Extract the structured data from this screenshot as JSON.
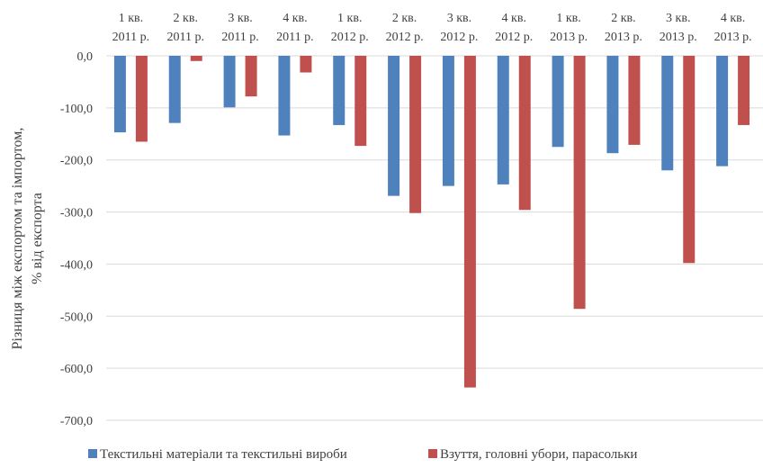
{
  "chart_data": {
    "type": "bar",
    "categories": [
      [
        "1 кв.",
        "2011 р."
      ],
      [
        "2 кв.",
        "2011 р."
      ],
      [
        "3 кв.",
        "2011 р."
      ],
      [
        "4 кв.",
        "2011 р."
      ],
      [
        "1 кв.",
        "2012 р."
      ],
      [
        "2 кв.",
        "2012 р."
      ],
      [
        "3 кв.",
        "2012 р."
      ],
      [
        "4 кв.",
        "2012 р."
      ],
      [
        "1 кв.",
        "2013 р."
      ],
      [
        "2 кв.",
        "2013 р."
      ],
      [
        "3 кв.",
        "2013 р."
      ],
      [
        "4 кв.",
        "2013 р."
      ]
    ],
    "series": [
      {
        "name": "Текстильні матеріали та текстильні вироби",
        "color": "#4F81BD",
        "values": [
          -147,
          -129,
          -99,
          -153,
          -133,
          -269,
          -250,
          -247,
          -175,
          -187,
          -220,
          -212
        ]
      },
      {
        "name": "Взуття, головні убори, парасольки",
        "color": "#C0504D",
        "values": [
          -165,
          -10,
          -78,
          -32,
          -173,
          -302,
          -637,
          -296,
          -486,
          -171,
          -398,
          -133
        ]
      }
    ],
    "ylabel": [
      "Різниця між експортом та імпортом,",
      "% від експорта"
    ],
    "ylim": [
      -700,
      0
    ],
    "yticks": [
      0,
      -100,
      -200,
      -300,
      -400,
      -500,
      -600,
      -700
    ],
    "ytick_labels": [
      "0,0",
      "-100,0",
      "-200,0",
      "-300,0",
      "-400,0",
      "-500,0",
      "-600,0",
      "-700,0"
    ],
    "grid": true,
    "legend_position": "bottom",
    "category_axis_position": "top",
    "gridline_color": "#D9D9D9"
  }
}
